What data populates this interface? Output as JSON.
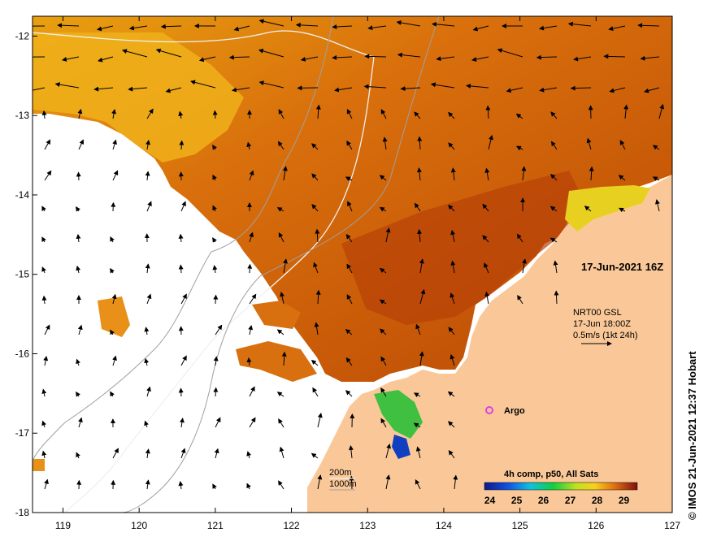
{
  "map": {
    "x_axis_ticks": [
      "119",
      "120",
      "121",
      "122",
      "123",
      "124",
      "125",
      "126",
      "127"
    ],
    "y_axis_ticks": [
      "-12",
      "-13",
      "-14",
      "-15",
      "-16",
      "-17",
      "-18"
    ],
    "x_range": [
      118.6,
      127
    ],
    "y_range": [
      -18,
      -11.75
    ]
  },
  "annotations": {
    "date_label": "17-Jun-2021 16Z",
    "current_source": "NRT00 GSL",
    "current_time": "17-Jun 18:00Z",
    "current_scale": "0.5m/s (1kt 24h)",
    "argo_label": "Argo",
    "contour_200": "200m",
    "contour_1000": "1000m"
  },
  "colorbar": {
    "title": "4h comp, p50, All Sats",
    "ticks": [
      "24",
      "25",
      "26",
      "27",
      "28",
      "29"
    ],
    "range": [
      23.8,
      29.5
    ]
  },
  "credit": "© IMOS 21-Jun-2021 12:37 Hobart",
  "colors": {
    "land": "#fac898",
    "warm_sst": "#c04a08",
    "mid_sst": "#e07c0c",
    "cool_sst": "#f0b820",
    "green_sst": "#3ccc3c",
    "argo_marker": "#e040e0"
  }
}
